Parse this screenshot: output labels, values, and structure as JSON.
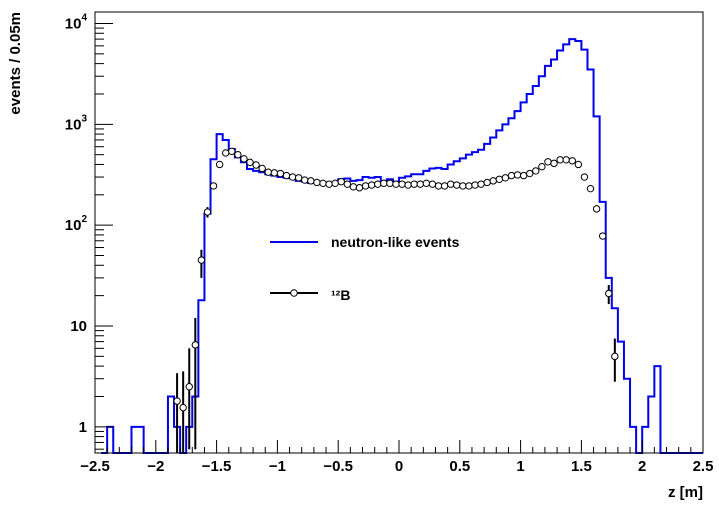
{
  "chart_data": {
    "type": "line",
    "xlabel": "z [m]",
    "ylabel": "events / 0.05m",
    "xlim": [
      -2.5,
      2.5
    ],
    "ylim": [
      0.55,
      13000
    ],
    "yscale": "log",
    "grid": false,
    "legend_position": "center-left",
    "x_ticks": [
      {
        "v": -2.5,
        "label": "−2.5"
      },
      {
        "v": -2,
        "label": "−2"
      },
      {
        "v": -1.5,
        "label": "−1.5"
      },
      {
        "v": -1,
        "label": "−1"
      },
      {
        "v": -0.5,
        "label": "−0.5"
      },
      {
        "v": 0,
        "label": "0"
      },
      {
        "v": 0.5,
        "label": "0.5"
      },
      {
        "v": 1,
        "label": "1"
      },
      {
        "v": 1.5,
        "label": "1.5"
      },
      {
        "v": 2,
        "label": "2"
      },
      {
        "v": 2.5,
        "label": "2.5"
      }
    ],
    "y_ticks": [
      {
        "v": 1,
        "base": "1",
        "exp": ""
      },
      {
        "v": 10,
        "base": "10",
        "exp": ""
      },
      {
        "v": 100,
        "base": "10",
        "exp": "2"
      },
      {
        "v": 1000,
        "base": "10",
        "exp": "3"
      },
      {
        "v": 10000,
        "base": "10",
        "exp": "4"
      }
    ],
    "series": [
      {
        "name": "neutron-like events",
        "style": "histogram",
        "color": "#0000ee",
        "bin_width": 0.05,
        "bin_low_edges": [
          -2.45,
          -2.4,
          -2.35,
          -2.3,
          -2.25,
          -2.2,
          -2.15,
          -2.1,
          -2.05,
          -2.0,
          -1.95,
          -1.9,
          -1.85,
          -1.8,
          -1.75,
          -1.7,
          -1.65,
          -1.6,
          -1.55,
          -1.5,
          -1.45,
          -1.4,
          -1.35,
          -1.3,
          -1.25,
          -1.2,
          -1.15,
          -1.1,
          -1.05,
          -1.0,
          -0.95,
          -0.9,
          -0.85,
          -0.8,
          -0.75,
          -0.7,
          -0.65,
          -0.6,
          -0.55,
          -0.5,
          -0.45,
          -0.4,
          -0.35,
          -0.3,
          -0.25,
          -0.2,
          -0.15,
          -0.1,
          -0.05,
          0.0,
          0.05,
          0.1,
          0.15,
          0.2,
          0.25,
          0.3,
          0.35,
          0.4,
          0.45,
          0.5,
          0.55,
          0.6,
          0.65,
          0.7,
          0.75,
          0.8,
          0.85,
          0.9,
          0.95,
          1.0,
          1.05,
          1.1,
          1.15,
          1.2,
          1.25,
          1.3,
          1.35,
          1.4,
          1.45,
          1.5,
          1.55,
          1.6,
          1.65,
          1.7,
          1.75,
          1.8,
          1.85,
          1.9,
          1.95,
          2.0,
          2.05,
          2.1,
          2.15,
          2.2,
          2.25,
          2.3,
          2.35,
          2.4,
          2.45
        ],
        "values": [
          0.5,
          1,
          0.5,
          0.5,
          0.5,
          1,
          1,
          0.5,
          0.5,
          0.5,
          0.5,
          2,
          1,
          0.5,
          1,
          2,
          18,
          130,
          450,
          800,
          700,
          570,
          470,
          420,
          360,
          345,
          335,
          320,
          310,
          300,
          295,
          292,
          275,
          270,
          262,
          270,
          255,
          265,
          260,
          285,
          290,
          275,
          280,
          300,
          295,
          300,
          275,
          285,
          270,
          295,
          305,
          320,
          320,
          345,
          365,
          370,
          360,
          400,
          430,
          460,
          500,
          530,
          560,
          640,
          740,
          870,
          1000,
          1150,
          1350,
          1650,
          2000,
          2400,
          3000,
          3800,
          4400,
          5400,
          6200,
          7000,
          6700,
          5500,
          3500,
          1200,
          170,
          30,
          15,
          7,
          3,
          1,
          0.5,
          1,
          2,
          4,
          0.5,
          0.5,
          0.5,
          0.5,
          0.5,
          0.5,
          0.5
        ]
      },
      {
        "name": "¹²B",
        "style": "markers-with-error-bars",
        "color": "#000000",
        "points": [
          {
            "x": -1.825,
            "y": 1.8,
            "err_lo": 1.25,
            "err_hi": 1.6
          },
          {
            "x": -1.775,
            "y": 1.55,
            "err_lo": 1.0,
            "err_hi": 2.0
          },
          {
            "x": -1.725,
            "y": 2.5,
            "err_lo": 1.9,
            "err_hi": 3.5
          },
          {
            "x": -1.675,
            "y": 6.5,
            "err_lo": 5.9,
            "err_hi": 5.5
          },
          {
            "x": -1.625,
            "y": 45,
            "err_lo": 15,
            "err_hi": 12
          },
          {
            "x": -1.575,
            "y": 135,
            "err_lo": 16,
            "err_hi": 16
          },
          {
            "x": -1.525,
            "y": 245
          },
          {
            "x": -1.475,
            "y": 400
          },
          {
            "x": -1.425,
            "y": 520
          },
          {
            "x": -1.375,
            "y": 540
          },
          {
            "x": -1.325,
            "y": 500
          },
          {
            "x": -1.275,
            "y": 455
          },
          {
            "x": -1.225,
            "y": 420
          },
          {
            "x": -1.175,
            "y": 395
          },
          {
            "x": -1.125,
            "y": 365
          },
          {
            "x": -1.075,
            "y": 335
          },
          {
            "x": -1.025,
            "y": 330
          },
          {
            "x": -0.975,
            "y": 325
          },
          {
            "x": -0.925,
            "y": 310
          },
          {
            "x": -0.875,
            "y": 300
          },
          {
            "x": -0.825,
            "y": 295
          },
          {
            "x": -0.775,
            "y": 280
          },
          {
            "x": -0.725,
            "y": 275
          },
          {
            "x": -0.675,
            "y": 265
          },
          {
            "x": -0.625,
            "y": 260
          },
          {
            "x": -0.575,
            "y": 255
          },
          {
            "x": -0.525,
            "y": 260
          },
          {
            "x": -0.475,
            "y": 270
          },
          {
            "x": -0.425,
            "y": 255
          },
          {
            "x": -0.375,
            "y": 240
          },
          {
            "x": -0.325,
            "y": 235
          },
          {
            "x": -0.275,
            "y": 245
          },
          {
            "x": -0.225,
            "y": 250
          },
          {
            "x": -0.175,
            "y": 255
          },
          {
            "x": -0.125,
            "y": 260
          },
          {
            "x": -0.075,
            "y": 260
          },
          {
            "x": -0.025,
            "y": 255
          },
          {
            "x": 0.025,
            "y": 255
          },
          {
            "x": 0.075,
            "y": 250
          },
          {
            "x": 0.125,
            "y": 255
          },
          {
            "x": 0.175,
            "y": 255
          },
          {
            "x": 0.225,
            "y": 260
          },
          {
            "x": 0.275,
            "y": 255
          },
          {
            "x": 0.325,
            "y": 245
          },
          {
            "x": 0.375,
            "y": 245
          },
          {
            "x": 0.425,
            "y": 255
          },
          {
            "x": 0.475,
            "y": 250
          },
          {
            "x": 0.525,
            "y": 245
          },
          {
            "x": 0.575,
            "y": 245
          },
          {
            "x": 0.625,
            "y": 250
          },
          {
            "x": 0.675,
            "y": 255
          },
          {
            "x": 0.725,
            "y": 265
          },
          {
            "x": 0.775,
            "y": 275
          },
          {
            "x": 0.825,
            "y": 285
          },
          {
            "x": 0.875,
            "y": 295
          },
          {
            "x": 0.925,
            "y": 310
          },
          {
            "x": 0.975,
            "y": 315
          },
          {
            "x": 1.025,
            "y": 310
          },
          {
            "x": 1.075,
            "y": 325
          },
          {
            "x": 1.125,
            "y": 345
          },
          {
            "x": 1.175,
            "y": 380
          },
          {
            "x": 1.225,
            "y": 425
          },
          {
            "x": 1.275,
            "y": 410
          },
          {
            "x": 1.325,
            "y": 445
          },
          {
            "x": 1.375,
            "y": 445
          },
          {
            "x": 1.425,
            "y": 435
          },
          {
            "x": 1.475,
            "y": 400
          },
          {
            "x": 1.525,
            "y": 300
          },
          {
            "x": 1.575,
            "y": 230
          },
          {
            "x": 1.625,
            "y": 145
          },
          {
            "x": 1.675,
            "y": 78
          },
          {
            "x": 1.725,
            "y": 21,
            "err_lo": 4.5,
            "err_hi": 4.5
          },
          {
            "x": 1.775,
            "y": 5,
            "err_lo": 2.2,
            "err_hi": 2.5
          }
        ]
      }
    ]
  }
}
